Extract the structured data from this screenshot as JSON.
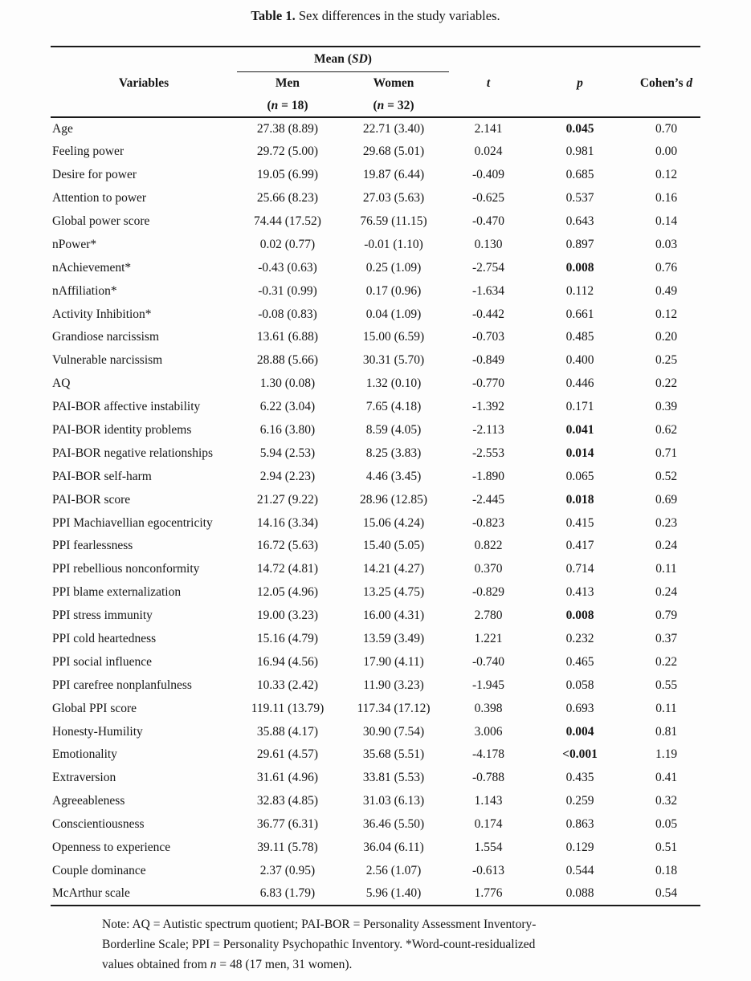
{
  "caption": {
    "label": "Table 1.",
    "text": " Sex differences in the study variables."
  },
  "table": {
    "group_header": {
      "prefix": "Mean (",
      "italic": "SD",
      "suffix": ")"
    },
    "columns": {
      "variables": "Variables",
      "men": "Men",
      "women": "Women",
      "t": "t",
      "p": "p",
      "cohens_d": {
        "prefix": "Cohen’s ",
        "italic": "d"
      }
    },
    "subheaders": {
      "men_n": {
        "prefix": "(",
        "italic": "n",
        "suffix": " = 18)"
      },
      "women_n": {
        "prefix": "(",
        "italic": "n",
        "suffix": " = 32)"
      }
    },
    "rows": [
      {
        "variable": "Age",
        "men": "27.38 (8.89)",
        "women": "22.71 (3.40)",
        "t": "2.141",
        "p": "0.045",
        "p_bold": true,
        "d": "0.70"
      },
      {
        "variable": "Feeling power",
        "men": "29.72 (5.00)",
        "women": "29.68 (5.01)",
        "t": "0.024",
        "p": "0.981",
        "d": "0.00"
      },
      {
        "variable": "Desire for power",
        "men": "19.05 (6.99)",
        "women": "19.87 (6.44)",
        "t": "-0.409",
        "p": "0.685",
        "d": "0.12"
      },
      {
        "variable": "Attention to power",
        "men": "25.66 (8.23)",
        "women": "27.03 (5.63)",
        "t": "-0.625",
        "p": "0.537",
        "d": "0.16"
      },
      {
        "variable": "Global power score",
        "men": "74.44 (17.52)",
        "women": "76.59 (11.15)",
        "t": "-0.470",
        "p": "0.643",
        "d": "0.14"
      },
      {
        "variable": "nPower*",
        "men": "0.02 (0.77)",
        "women": "-0.01 (1.10)",
        "t": "0.130",
        "p": "0.897",
        "d": "0.03"
      },
      {
        "variable": "nAchievement*",
        "men": "-0.43 (0.63)",
        "women": "0.25 (1.09)",
        "t": "-2.754",
        "p": "0.008",
        "p_bold": true,
        "d": "0.76"
      },
      {
        "variable": "nAffiliation*",
        "men": "-0.31 (0.99)",
        "women": "0.17 (0.96)",
        "t": "-1.634",
        "p": "0.112",
        "d": "0.49"
      },
      {
        "variable": "Activity Inhibition*",
        "men": "-0.08 (0.83)",
        "women": "0.04 (1.09)",
        "t": "-0.442",
        "p": "0.661",
        "d": "0.12"
      },
      {
        "variable": "Grandiose narcissism",
        "men": "13.61 (6.88)",
        "women": "15.00 (6.59)",
        "t": "-0.703",
        "p": "0.485",
        "d": "0.20"
      },
      {
        "variable": "Vulnerable narcissism",
        "men": "28.88 (5.66)",
        "women": "30.31 (5.70)",
        "t": "-0.849",
        "p": "0.400",
        "d": "0.25"
      },
      {
        "variable": "AQ",
        "men": "1.30 (0.08)",
        "women": "1.32 (0.10)",
        "t": "-0.770",
        "p": "0.446",
        "d": "0.22"
      },
      {
        "variable": "PAI-BOR affective instability",
        "men": "6.22 (3.04)",
        "women": "7.65 (4.18)",
        "t": "-1.392",
        "p": "0.171",
        "d": "0.39"
      },
      {
        "variable": "PAI-BOR identity problems",
        "men": "6.16 (3.80)",
        "women": "8.59 (4.05)",
        "t": "-2.113",
        "p": "0.041",
        "p_bold": true,
        "d": "0.62"
      },
      {
        "variable": "PAI-BOR negative relationships",
        "men": "5.94 (2.53)",
        "women": "8.25 (3.83)",
        "t": "-2.553",
        "p": "0.014",
        "p_bold": true,
        "d": "0.71"
      },
      {
        "variable": "PAI-BOR self-harm",
        "men": "2.94 (2.23)",
        "women": "4.46 (3.45)",
        "t": "-1.890",
        "p": "0.065",
        "d": "0.52"
      },
      {
        "variable": "PAI-BOR score",
        "men": "21.27 (9.22)",
        "women": "28.96 (12.85)",
        "t": "-2.445",
        "p": "0.018",
        "p_bold": true,
        "d": "0.69"
      },
      {
        "variable": "PPI Machiavellian egocentricity",
        "men": "14.16 (3.34)",
        "women": "15.06 (4.24)",
        "t": "-0.823",
        "p": "0.415",
        "d": "0.23"
      },
      {
        "variable": "PPI fearlessness",
        "men": "16.72 (5.63)",
        "women": "15.40 (5.05)",
        "t": "0.822",
        "p": "0.417",
        "d": "0.24"
      },
      {
        "variable": "PPI rebellious nonconformity",
        "men": "14.72 (4.81)",
        "women": "14.21 (4.27)",
        "t": "0.370",
        "p": "0.714",
        "d": "0.11"
      },
      {
        "variable": "PPI blame externalization",
        "men": "12.05 (4.96)",
        "women": "13.25 (4.75)",
        "t": "-0.829",
        "p": "0.413",
        "d": "0.24"
      },
      {
        "variable": "PPI stress immunity",
        "men": "19.00 (3.23)",
        "women": "16.00 (4.31)",
        "t": "2.780",
        "p": "0.008",
        "p_bold": true,
        "d": "0.79"
      },
      {
        "variable": "PPI cold heartedness",
        "men": "15.16 (4.79)",
        "women": "13.59 (3.49)",
        "t": "1.221",
        "p": "0.232",
        "d": "0.37"
      },
      {
        "variable": "PPI social influence",
        "men": "16.94 (4.56)",
        "women": "17.90 (4.11)",
        "t": "-0.740",
        "p": "0.465",
        "d": "0.22"
      },
      {
        "variable": "PPI carefree nonplanfulness",
        "men": "10.33 (2.42)",
        "women": "11.90 (3.23)",
        "t": "-1.945",
        "p": "0.058",
        "d": "0.55"
      },
      {
        "variable": "Global PPI score",
        "men": "119.11 (13.79)",
        "women": "117.34 (17.12)",
        "t": "0.398",
        "p": "0.693",
        "d": "0.11"
      },
      {
        "variable": "Honesty-Humility",
        "men": "35.88 (4.17)",
        "women": "30.90 (7.54)",
        "t": "3.006",
        "p": "0.004",
        "p_bold": true,
        "d": "0.81"
      },
      {
        "variable": "Emotionality",
        "men": "29.61 (4.57)",
        "women": "35.68 (5.51)",
        "t": "-4.178",
        "p": "<0.001",
        "p_bold": true,
        "d": "1.19"
      },
      {
        "variable": "Extraversion",
        "men": "31.61 (4.96)",
        "women": "33.81 (5.53)",
        "t": "-0.788",
        "p": "0.435",
        "d": "0.41"
      },
      {
        "variable": "Agreeableness",
        "men": "32.83 (4.85)",
        "women": "31.03 (6.13)",
        "t": "1.143",
        "p": "0.259",
        "d": "0.32"
      },
      {
        "variable": "Conscientiousness",
        "men": "36.77 (6.31)",
        "women": "36.46 (5.50)",
        "t": "0.174",
        "p": "0.863",
        "d": "0.05"
      },
      {
        "variable": "Openness to experience",
        "men": "39.11 (5.78)",
        "women": "36.04 (6.11)",
        "t": "1.554",
        "p": "0.129",
        "d": "0.51"
      },
      {
        "variable": "Couple dominance",
        "men": "2.37 (0.95)",
        "women": "2.56 (1.07)",
        "t": "-0.613",
        "p": "0.544",
        "d": "0.18"
      },
      {
        "variable": "McArthur scale",
        "men": "6.83 (1.79)",
        "women": "5.96 (1.40)",
        "t": "1.776",
        "p": "0.088",
        "d": "0.54"
      }
    ]
  },
  "note": {
    "line1": "Note: AQ = Autistic spectrum quotient; PAI-BOR = Personality Assessment Inventory-",
    "line2": "Borderline Scale; PPI = Personality Psychopathic Inventory. *Word-count-residualized",
    "line3": {
      "prefix": "values obtained from ",
      "italic": "n",
      "suffix": " = 48 (17 men, 31 women)."
    }
  }
}
